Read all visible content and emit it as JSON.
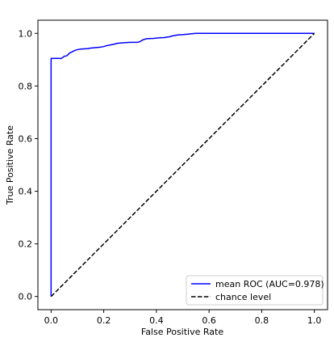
{
  "chart_data": {
    "type": "line",
    "title": "",
    "xlabel": "False Positive Rate",
    "ylabel": "True Positive Rate",
    "xlim": [
      -0.05,
      1.05
    ],
    "ylim": [
      -0.05,
      1.05
    ],
    "xticks": [
      "0.0",
      "0.2",
      "0.4",
      "0.6",
      "0.8",
      "1.0"
    ],
    "yticks": [
      "0.0",
      "0.2",
      "0.4",
      "0.6",
      "0.8",
      "1.0"
    ],
    "grid": false,
    "legend_position": "lower-right",
    "series": [
      {
        "name": "mean ROC (AUC=0.978)",
        "color": "#0000ff",
        "style": "solid",
        "x": [
          0.0,
          0.0,
          0.04,
          0.05,
          0.06,
          0.07,
          0.08,
          0.09,
          0.1,
          0.11,
          0.14,
          0.15,
          0.17,
          0.19,
          0.2,
          0.21,
          0.23,
          0.24,
          0.25,
          0.27,
          0.3,
          0.33,
          0.34,
          0.35,
          0.36,
          0.37,
          0.39,
          0.4,
          0.41,
          0.43,
          0.44,
          0.45,
          0.46,
          0.47,
          0.48,
          0.5,
          0.52,
          0.53,
          0.55,
          0.7,
          0.85,
          1.0
        ],
        "y": [
          0.0,
          0.905,
          0.905,
          0.913,
          0.915,
          0.925,
          0.93,
          0.935,
          0.938,
          0.94,
          0.942,
          0.944,
          0.946,
          0.948,
          0.95,
          0.953,
          0.957,
          0.959,
          0.962,
          0.964,
          0.966,
          0.966,
          0.97,
          0.976,
          0.979,
          0.98,
          0.981,
          0.982,
          0.983,
          0.984,
          0.986,
          0.987,
          0.99,
          0.992,
          0.994,
          0.995,
          0.997,
          0.998,
          1.0,
          1.0,
          1.0,
          1.0
        ]
      },
      {
        "name": "chance level",
        "color": "#000000",
        "style": "dashed",
        "x": [
          0.0,
          1.0
        ],
        "y": [
          0.0,
          1.0
        ]
      }
    ]
  }
}
